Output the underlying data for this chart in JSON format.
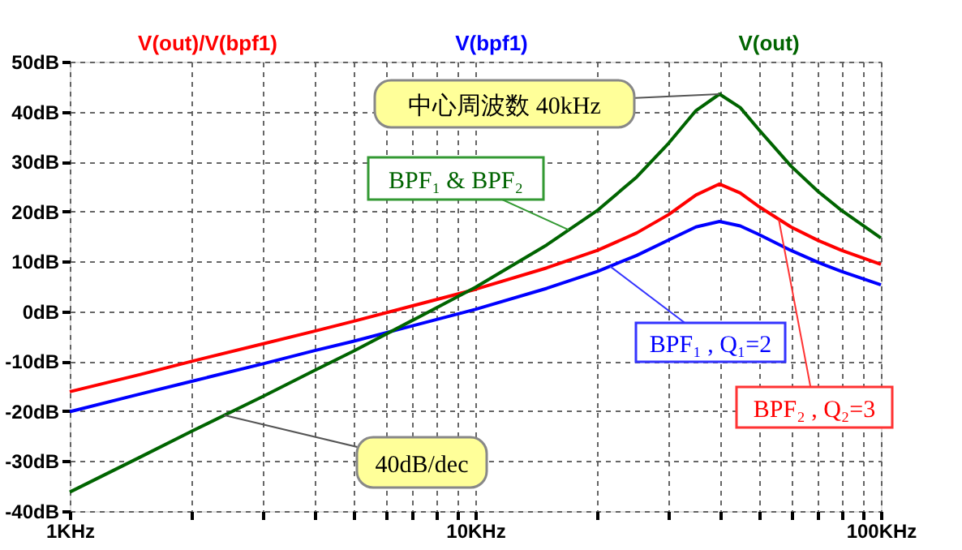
{
  "chart_data": {
    "type": "line",
    "x": [
      1,
      1.5,
      2,
      3,
      4,
      5,
      7,
      10,
      15,
      20,
      25,
      30,
      35,
      40,
      45,
      50,
      60,
      70,
      80,
      100
    ],
    "series": [
      {
        "name": "V(out)/V(bpf1)",
        "color": "#ff0000",
        "values": [
          -16.1,
          -12.6,
          -10.0,
          -6.5,
          -4.0,
          -2.0,
          1.1,
          4.4,
          8.7,
          12.2,
          15.7,
          19.4,
          23.3,
          25.5,
          23.7,
          21.0,
          16.9,
          14.2,
          12.2,
          9.4
        ]
      },
      {
        "name": "V(bpf1)",
        "color": "#0000ff",
        "values": [
          -20.1,
          -16.5,
          -14.0,
          -10.5,
          -7.9,
          -6.0,
          -2.9,
          0.4,
          4.6,
          8.0,
          11.2,
          14.3,
          16.9,
          18.0,
          17.1,
          15.4,
          12.2,
          9.8,
          8.0,
          5.3
        ]
      },
      {
        "name": "V(out)",
        "color": "#006400",
        "values": [
          -36.2,
          -29.1,
          -24.0,
          -17.0,
          -11.9,
          -8.0,
          -1.8,
          4.8,
          13.3,
          20.2,
          26.9,
          33.7,
          40.2,
          43.5,
          40.8,
          36.4,
          29.1,
          24.0,
          20.2,
          14.7
        ]
      }
    ],
    "log": "x",
    "xlim": [
      1,
      100
    ],
    "xticks": [
      {
        "value": 1,
        "label": "1KHz"
      },
      {
        "value": 2,
        "label": null
      },
      {
        "value": 3,
        "label": null
      },
      {
        "value": 4,
        "label": null
      },
      {
        "value": 5,
        "label": null
      },
      {
        "value": 6,
        "label": null
      },
      {
        "value": 7,
        "label": null
      },
      {
        "value": 8,
        "label": null
      },
      {
        "value": 9,
        "label": null
      },
      {
        "value": 10,
        "label": "10KHz"
      },
      {
        "value": 20,
        "label": null
      },
      {
        "value": 30,
        "label": null
      },
      {
        "value": 40,
        "label": null
      },
      {
        "value": 50,
        "label": null
      },
      {
        "value": 60,
        "label": null
      },
      {
        "value": 70,
        "label": null
      },
      {
        "value": 80,
        "label": null
      },
      {
        "value": 90,
        "label": null
      },
      {
        "value": 100,
        "label": "100KHz"
      }
    ],
    "ylim": [
      -40,
      50
    ],
    "yticks": [
      {
        "value": -40,
        "label": "-40dB"
      },
      {
        "value": -30,
        "label": "-30dB"
      },
      {
        "value": -20,
        "label": "-20dB"
      },
      {
        "value": -10,
        "label": "-10dB"
      },
      {
        "value": 0,
        "label": "0dB"
      },
      {
        "value": 10,
        "label": "10dB"
      },
      {
        "value": 20,
        "label": "20dB"
      },
      {
        "value": 30,
        "label": "30dB"
      },
      {
        "value": 40,
        "label": "40dB"
      },
      {
        "value": 50,
        "label": "50dB"
      }
    ],
    "grid": true,
    "legend": "top",
    "line_style": "solid",
    "marker": "none",
    "annotations": [
      {
        "text": "中心周波数  40kHz",
        "x": 40,
        "y": 43.5
      },
      {
        "text": "BPF₁ & BPF₂",
        "x": 17,
        "y": 16.3
      },
      {
        "text": "BPF₁ , Q₁=2",
        "x": 21.5,
        "y": 9.0
      },
      {
        "text": "BPF₂ , Q₂=3",
        "x": 56,
        "y": 18.4
      },
      {
        "text": "40dB/dec",
        "x": 2.4,
        "y": -20.8
      }
    ]
  }
}
